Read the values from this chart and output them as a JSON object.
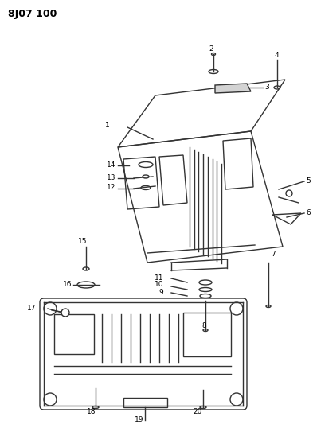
{
  "title": "8J07 100",
  "background_color": "#ffffff",
  "line_color": "#333333",
  "text_color": "#000000",
  "fig_width": 3.93,
  "fig_height": 5.33,
  "dpi": 100
}
